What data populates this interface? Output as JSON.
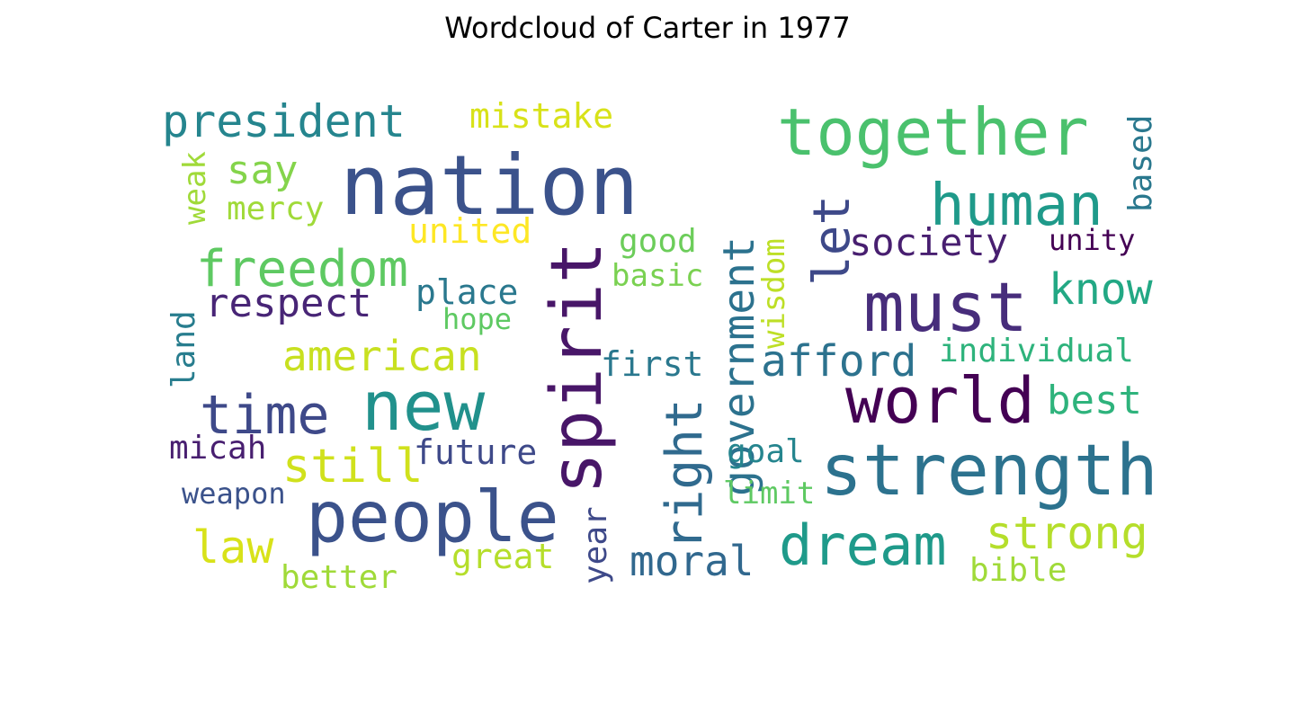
{
  "title": "Wordcloud of Carter in 1977",
  "words": [
    {
      "text": "nation",
      "color": "#3b528b"
    },
    {
      "text": "together",
      "color": "#4ac16d"
    },
    {
      "text": "must",
      "color": "#472d7b"
    },
    {
      "text": "strength",
      "color": "#2c728e"
    },
    {
      "text": "people",
      "color": "#3b528b"
    },
    {
      "text": "world",
      "color": "#440154"
    },
    {
      "text": "new",
      "color": "#21918c"
    },
    {
      "text": "spirit",
      "color": "#481668"
    },
    {
      "text": "human",
      "color": "#1f9a8a"
    },
    {
      "text": "dream",
      "color": "#1f9a8a"
    },
    {
      "text": "government",
      "color": "#2c728e"
    },
    {
      "text": "president",
      "color": "#25858e"
    },
    {
      "text": "freedom",
      "color": "#5ec962"
    },
    {
      "text": "time",
      "color": "#3e4989"
    },
    {
      "text": "let",
      "color": "#3e4989"
    },
    {
      "text": "right",
      "color": "#306a8e"
    },
    {
      "text": "society",
      "color": "#481f70"
    },
    {
      "text": "afford",
      "color": "#2c728e"
    },
    {
      "text": "american",
      "color": "#c8e020"
    },
    {
      "text": "know",
      "color": "#22a884"
    },
    {
      "text": "strong",
      "color": "#b5de2b"
    },
    {
      "text": "respect",
      "color": "#482576"
    },
    {
      "text": "still",
      "color": "#d0e11c"
    },
    {
      "text": "moral",
      "color": "#31688e"
    },
    {
      "text": "best",
      "color": "#2eb37c"
    },
    {
      "text": "law",
      "color": "#d8e219"
    },
    {
      "text": "say",
      "color": "#84d44b"
    },
    {
      "text": "place",
      "color": "#2a788e"
    },
    {
      "text": "future",
      "color": "#3e4989"
    },
    {
      "text": "first",
      "color": "#2a788e"
    },
    {
      "text": "united",
      "color": "#fde725"
    },
    {
      "text": "mistake",
      "color": "#d8e219"
    },
    {
      "text": "individual",
      "color": "#2eb37c"
    },
    {
      "text": "micah",
      "color": "#481f70"
    },
    {
      "text": "mercy",
      "color": "#a0da39"
    },
    {
      "text": "good",
      "color": "#6ccd5a"
    },
    {
      "text": "basic",
      "color": "#7ad151"
    },
    {
      "text": "great",
      "color": "#b5de2b"
    },
    {
      "text": "better",
      "color": "#a0da39"
    },
    {
      "text": "bible",
      "color": "#a0da39"
    },
    {
      "text": "unity",
      "color": "#440154"
    },
    {
      "text": "based",
      "color": "#2a788e"
    },
    {
      "text": "goal",
      "color": "#25858e"
    },
    {
      "text": "limit",
      "color": "#5ec962"
    },
    {
      "text": "weapon",
      "color": "#3b528b"
    },
    {
      "text": "hope",
      "color": "#5ec962"
    },
    {
      "text": "wisdom",
      "color": "#bddf26"
    },
    {
      "text": "land",
      "color": "#287d8e"
    },
    {
      "text": "weak",
      "color": "#a0da39"
    },
    {
      "text": "year",
      "color": "#3e4989"
    }
  ]
}
